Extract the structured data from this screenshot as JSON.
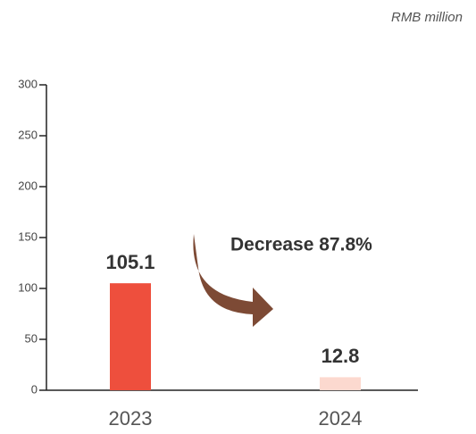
{
  "chart_data": {
    "type": "bar",
    "unit_label": "RMB million",
    "categories": [
      "2023",
      "2024"
    ],
    "values": [
      105.1,
      12.8
    ],
    "colors": [
      "#ee4f3d",
      "#fcd9cf"
    ],
    "annotation": "Decrease 87.8%",
    "ylim": [
      0,
      300
    ],
    "yticks": [
      0,
      50,
      100,
      150,
      200,
      250,
      300
    ]
  }
}
